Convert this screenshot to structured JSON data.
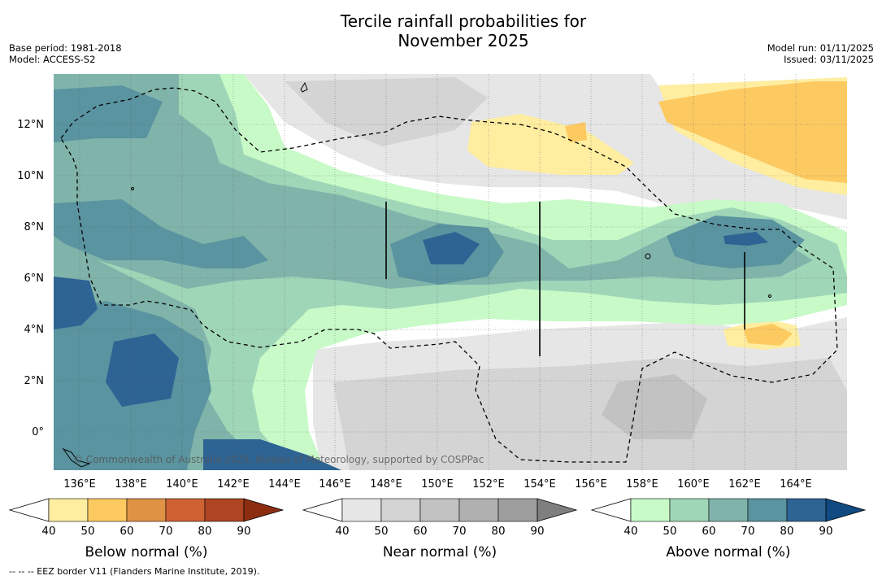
{
  "header": {
    "title_line1": "Tercile rainfall probabilities for",
    "title_line2": "November 2025",
    "base_period": "Base period: 1981-2018",
    "model": "Model: ACCESS-S2",
    "model_run": "Model run: 01/11/2025",
    "issued": "Issued: 03/11/2025"
  },
  "map": {
    "lat_labels": [
      "12°N",
      "10°N",
      "8°N",
      "6°N",
      "4°N",
      "2°N",
      "0°"
    ],
    "lon_labels": [
      "136°E",
      "138°E",
      "140°E",
      "142°E",
      "144°E",
      "146°E",
      "148°E",
      "150°E",
      "152°E",
      "154°E",
      "156°E",
      "158°E",
      "160°E",
      "162°E",
      "164°E"
    ],
    "copyright": "© Commonwealth of Australia 2025, Bureau of Meteorology, supported by COSPPac"
  },
  "legend": {
    "tick_labels": [
      "40",
      "50",
      "60",
      "70",
      "80",
      "90"
    ],
    "below": {
      "title": "Below normal (%)",
      "colors": [
        "#ffffff",
        "#ffeda0",
        "#fdca62",
        "#e09244",
        "#cf6233",
        "#ad4522",
        "#8c2d12"
      ]
    },
    "near": {
      "title": "Near normal (%)",
      "colors": [
        "#ffffff",
        "#e6e6e6",
        "#d4d4d4",
        "#c2c2c2",
        "#b0b0b0",
        "#9e9e9e",
        "#7f7f7f"
      ]
    },
    "above": {
      "title": "Above normal (%)",
      "colors": [
        "#ffffff",
        "#c8fac8",
        "#a0d6b8",
        "#80b4aa",
        "#5a94a0",
        "#2e6494",
        "#104a80"
      ]
    }
  },
  "footnote": "--  --  -- EEZ border V11 (Flanders Marine Institute, 2019)."
}
